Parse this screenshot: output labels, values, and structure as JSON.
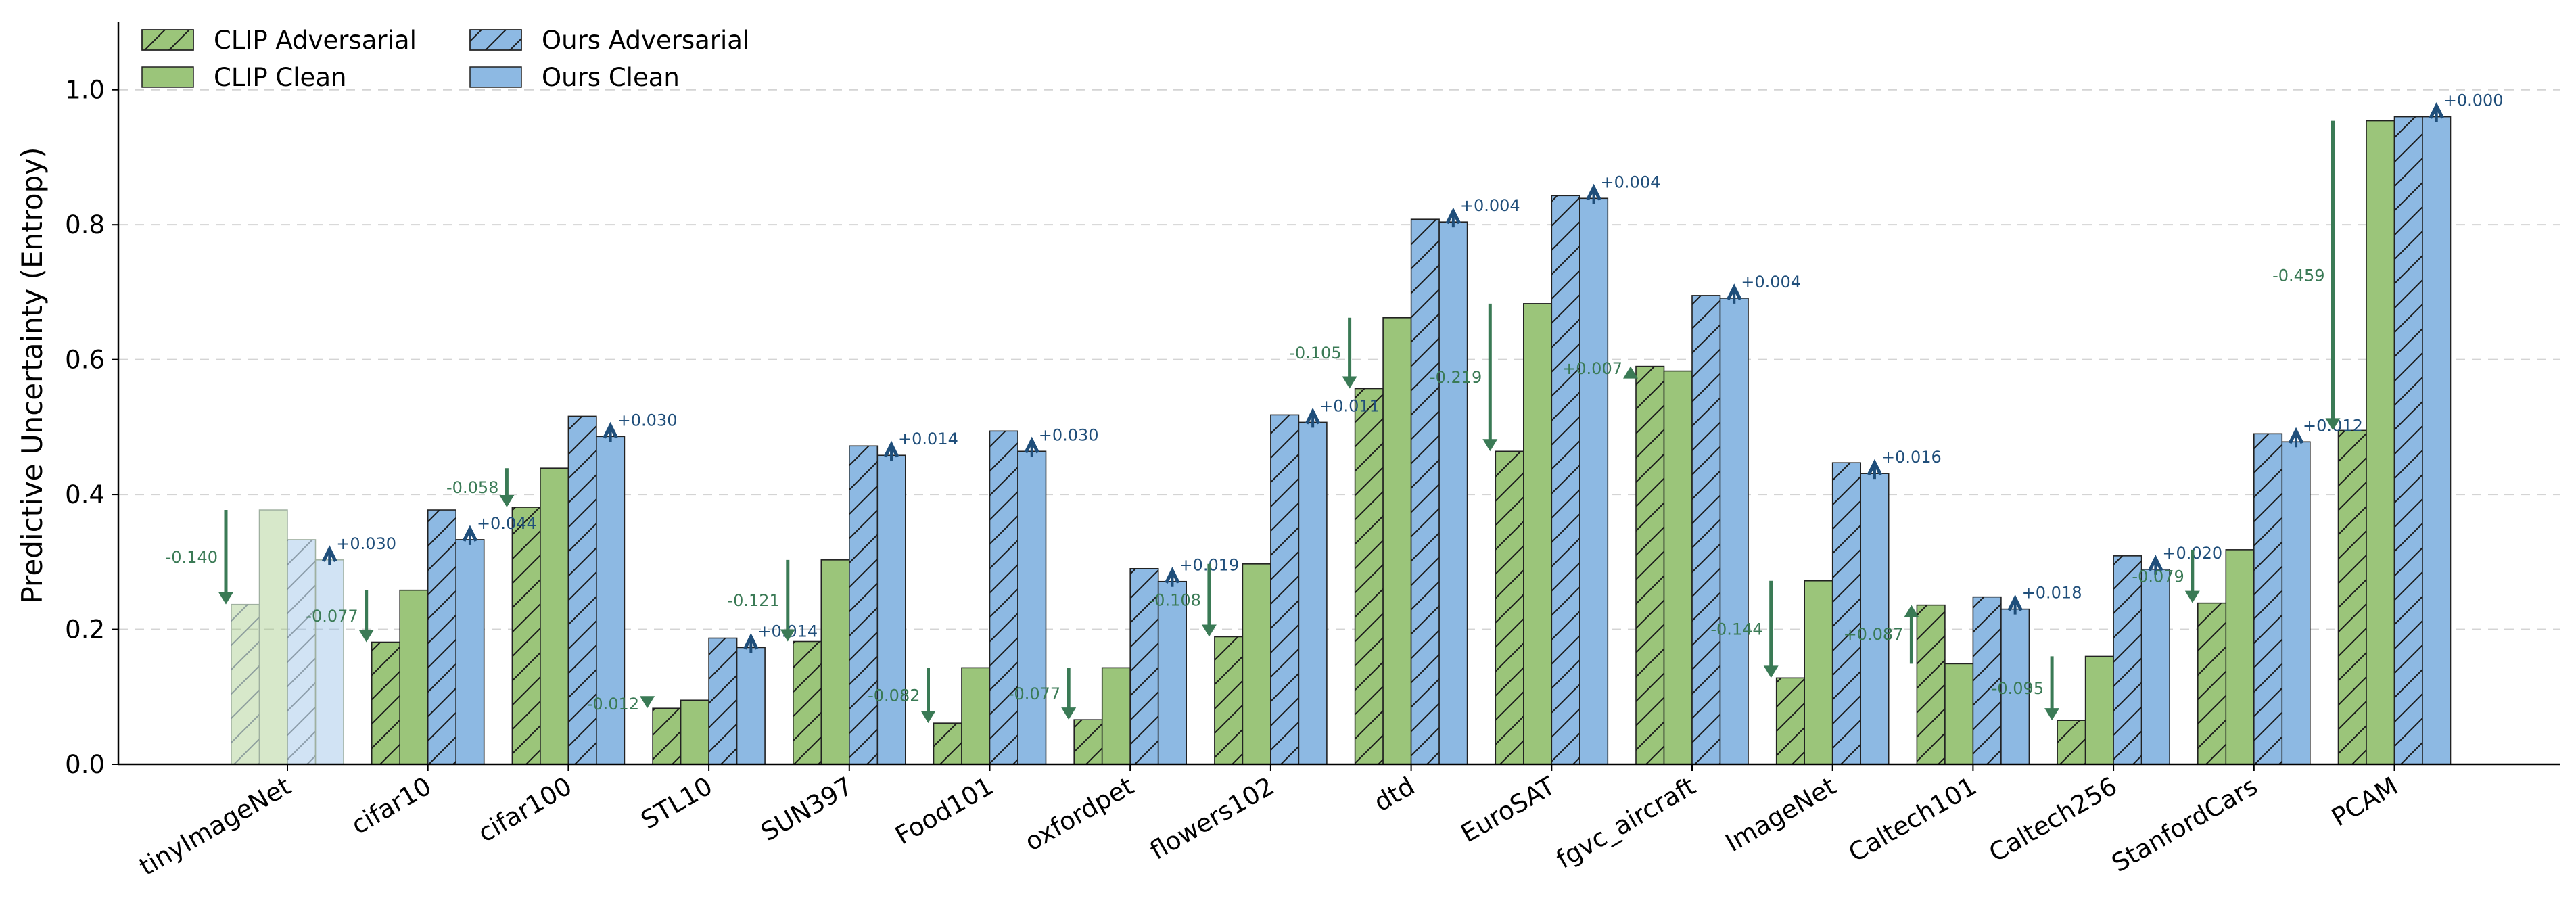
{
  "chart_data": {
    "type": "bar",
    "title": "",
    "xlabel": "",
    "ylabel": "Predictive Uncertainty (Entropy)",
    "ylim": [
      0.0,
      1.1
    ],
    "yticks": [
      "0.0",
      "0.2",
      "0.4",
      "0.6",
      "0.8",
      "1.0"
    ],
    "ytick_values": [
      0.0,
      0.2,
      0.4,
      0.6,
      0.8,
      1.0
    ],
    "grid": "horizontal dashed",
    "legend_position": "top-left",
    "categories": [
      "tinyImageNet",
      "cifar10",
      "cifar100",
      "STL10",
      "SUN397",
      "Food101",
      "oxfordpet",
      "flowers102",
      "dtd",
      "EuroSAT",
      "fgvc_aircraft",
      "ImageNet",
      "Caltech101",
      "Caltech256",
      "StanfordCars",
      "PCAM"
    ],
    "faded_categories": [
      "tinyImageNet"
    ],
    "series": [
      {
        "name": "CLIP Adversarial",
        "color": "#9bc57a",
        "hatch": true,
        "values": [
          0.237,
          0.181,
          0.381,
          0.083,
          0.182,
          0.061,
          0.066,
          0.189,
          0.557,
          0.464,
          0.59,
          0.128,
          0.236,
          0.065,
          0.239,
          0.495
        ]
      },
      {
        "name": "CLIP Clean",
        "color": "#9bc57a",
        "hatch": false,
        "values": [
          0.377,
          0.258,
          0.439,
          0.095,
          0.303,
          0.143,
          0.143,
          0.297,
          0.662,
          0.683,
          0.583,
          0.272,
          0.149,
          0.16,
          0.318,
          0.954
        ]
      },
      {
        "name": "Ours Adversarial",
        "color": "#8db9e3",
        "hatch": true,
        "values": [
          0.333,
          0.377,
          0.516,
          0.187,
          0.472,
          0.494,
          0.29,
          0.518,
          0.808,
          0.843,
          0.695,
          0.447,
          0.248,
          0.309,
          0.49,
          0.96
        ]
      },
      {
        "name": "Ours Clean",
        "color": "#8db9e3",
        "hatch": false,
        "values": [
          0.303,
          0.333,
          0.486,
          0.173,
          0.458,
          0.464,
          0.271,
          0.507,
          0.804,
          0.839,
          0.691,
          0.431,
          0.23,
          0.289,
          0.478,
          0.96
        ]
      }
    ],
    "clip_deltas": [
      "-0.140",
      "-0.077",
      "-0.058",
      "-0.012",
      "-0.121",
      "-0.082",
      "-0.077",
      "-0.108",
      "-0.105",
      "-0.219",
      "+0.007",
      "-0.144",
      "+0.087",
      "-0.095",
      "-0.079",
      "-0.459"
    ],
    "ours_deltas": [
      "+0.030",
      "+0.044",
      "+0.030",
      "+0.014",
      "+0.014",
      "+0.030",
      "+0.019",
      "+0.011",
      "+0.004",
      "+0.004",
      "+0.004",
      "+0.016",
      "+0.018",
      "+0.020",
      "+0.012",
      "+0.000"
    ],
    "clip_arrow_color": "#3a7a55",
    "ours_arrow_color": "#1f4e7a"
  }
}
